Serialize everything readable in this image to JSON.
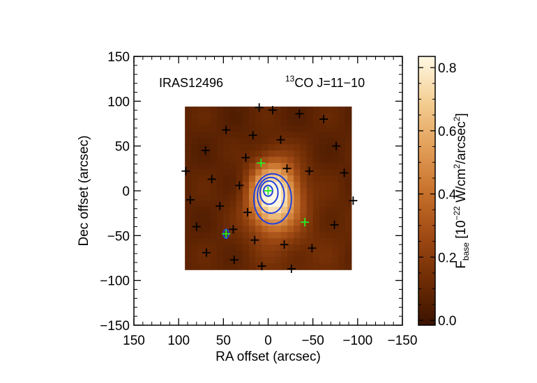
{
  "chart_data": {
    "type": "heatmap",
    "source_label": "IRAS12496",
    "line_label": {
      "superscript": "13",
      "text": "CO J=11−10"
    },
    "xlabel": "RA offset (arcsec)",
    "ylabel": "Dec offset (arcsec)",
    "xlim": [
      150,
      -150
    ],
    "ylim": [
      -150,
      150
    ],
    "xticks": [
      {
        "value": 150,
        "label": "150"
      },
      {
        "value": 100,
        "label": "100"
      },
      {
        "value": 50,
        "label": "50"
      },
      {
        "value": 0,
        "label": "0"
      },
      {
        "value": -50,
        "label": "−50"
      },
      {
        "value": -100,
        "label": "−100"
      },
      {
        "value": -150,
        "label": "−150"
      }
    ],
    "yticks": [
      {
        "value": 150,
        "label": "150"
      },
      {
        "value": 100,
        "label": "100"
      },
      {
        "value": 50,
        "label": "50"
      },
      {
        "value": 0,
        "label": "0"
      },
      {
        "value": -50,
        "label": "−50"
      },
      {
        "value": -100,
        "label": "−100"
      },
      {
        "value": -150,
        "label": "−150"
      }
    ],
    "map_extent": {
      "x": [
        93,
        -93
      ],
      "y": [
        -88,
        94
      ]
    },
    "map_peak": {
      "x": -5,
      "y": -5,
      "value": 0.82
    },
    "colorbar": {
      "range": [
        0.0,
        0.82
      ],
      "ticks": [
        {
          "value": 0.0,
          "label": "0.0"
        },
        {
          "value": 0.2,
          "label": "0.2"
        },
        {
          "value": 0.4,
          "label": "0.4"
        },
        {
          "value": 0.6,
          "label": "0.6"
        },
        {
          "value": 0.8,
          "label": "0.8"
        }
      ],
      "label": {
        "main": "F",
        "sub": "base",
        "unit_open": " [10",
        "unit_exp1": "−22",
        "unit_mid": " W/cm",
        "unit_exp2": "2",
        "unit_mid2": "/arcsec",
        "unit_exp3": "2",
        "unit_close": "]"
      },
      "colors": [
        "#3a1200",
        "#6e2c04",
        "#a04a14",
        "#c8722c",
        "#e3a05a",
        "#f4cf94",
        "#fff8e4"
      ]
    },
    "contours": [
      {
        "level": 1,
        "center": [
          0,
          0
        ],
        "rx": 5,
        "ry": 6
      },
      {
        "level": 2,
        "center": [
          -1,
          -2
        ],
        "rx": 10,
        "ry": 13
      },
      {
        "level": 3,
        "center": [
          -3,
          -5
        ],
        "rx": 15,
        "ry": 20
      },
      {
        "level": 4,
        "center": [
          -5,
          -9
        ],
        "rx": 21,
        "ry": 28
      },
      {
        "level": 5,
        "center": [
          47,
          -48
        ],
        "rx": 3,
        "ry": 5
      }
    ],
    "contour_color": "#2040e0",
    "black_markers": [
      [
        10,
        93
      ],
      [
        -5,
        90
      ],
      [
        -35,
        86
      ],
      [
        -62,
        80
      ],
      [
        47,
        68
      ],
      [
        17,
        62
      ],
      [
        -14,
        57
      ],
      [
        -76,
        50
      ],
      [
        70,
        45
      ],
      [
        25,
        37
      ],
      [
        -46,
        22
      ],
      [
        -85,
        20
      ],
      [
        92,
        22
      ],
      [
        63,
        13
      ],
      [
        -21,
        25
      ],
      [
        32,
        6
      ],
      [
        87,
        -10
      ],
      [
        54,
        -17
      ],
      [
        23,
        -24
      ],
      [
        -95,
        -11
      ],
      [
        80,
        -40
      ],
      [
        -74,
        -38
      ],
      [
        39,
        -43
      ],
      [
        15,
        -55
      ],
      [
        -18,
        -60
      ],
      [
        -49,
        -64
      ],
      [
        69,
        -69
      ],
      [
        38,
        -77
      ],
      [
        7,
        -84
      ],
      [
        -26,
        -87
      ]
    ],
    "black_marker_color": "#000000",
    "green_markers": [
      [
        8,
        31
      ],
      [
        0,
        0
      ],
      [
        -41,
        -35
      ],
      [
        47,
        -48
      ]
    ],
    "green_marker_color": "#22ee22"
  }
}
